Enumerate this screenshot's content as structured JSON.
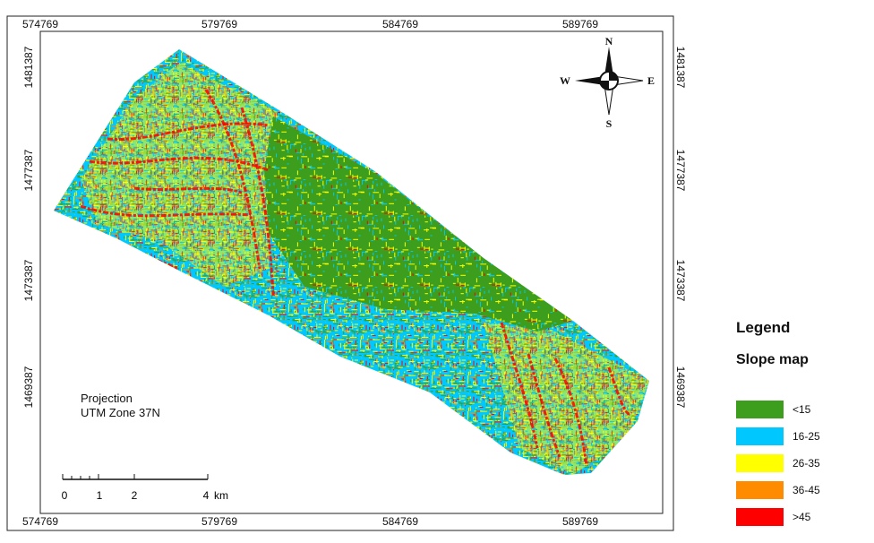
{
  "map": {
    "x_labels": [
      574769,
      579769,
      584769,
      589769
    ],
    "y_labels": [
      1481387,
      1477387,
      1473387,
      1469387
    ],
    "compass": {
      "n": "N",
      "s": "S",
      "e": "E",
      "w": "W"
    },
    "projection": [
      "Projection",
      "UTM Zone 37N"
    ],
    "scale_bar": {
      "labels": [
        0,
        1,
        2,
        4
      ],
      "unit": "km"
    },
    "legend": {
      "title": "Legend",
      "subtitle": "Slope map",
      "items": [
        {
          "label": "<15",
          "color": "#3c9e1c"
        },
        {
          "label": "16-25",
          "color": "#00c8ff"
        },
        {
          "label": "26-35",
          "color": "#ffff00"
        },
        {
          "label": "36-45",
          "color": "#ff8c00"
        },
        {
          "label": ">45",
          "color": "#ff0000"
        }
      ]
    }
  }
}
